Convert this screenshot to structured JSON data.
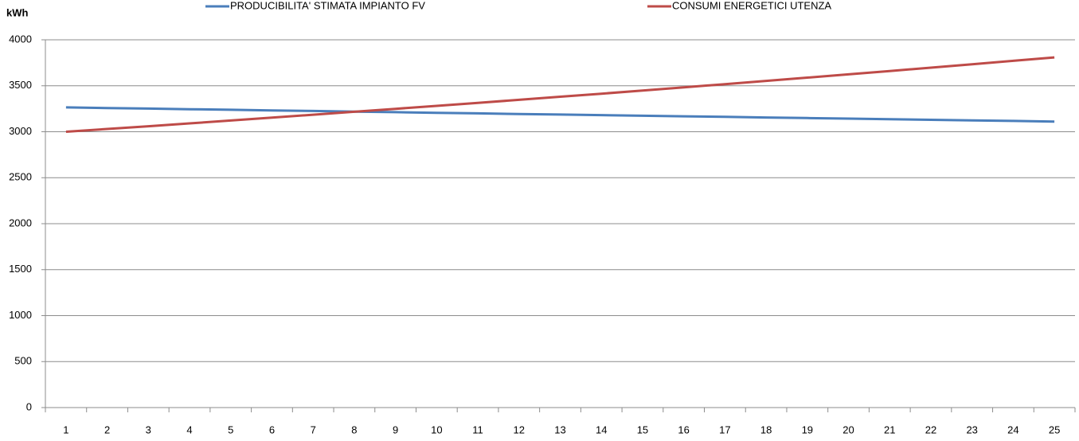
{
  "chart_data": {
    "type": "line",
    "y_label": "kWh",
    "categories": [
      "1",
      "2",
      "3",
      "4",
      "5",
      "6",
      "7",
      "8",
      "9",
      "10",
      "11",
      "12",
      "13",
      "14",
      "15",
      "16",
      "17",
      "18",
      "19",
      "20",
      "21",
      "22",
      "23",
      "24",
      "25"
    ],
    "series": [
      {
        "name": "PRODUCIBILITA' STIMATA IMPIANTO FV",
        "color": "#4a7ebb",
        "values": [
          3265,
          3258,
          3252,
          3245,
          3239,
          3232,
          3226,
          3219,
          3213,
          3206,
          3200,
          3193,
          3187,
          3181,
          3174,
          3168,
          3162,
          3155,
          3149,
          3143,
          3136,
          3130,
          3124,
          3118,
          3111
        ]
      },
      {
        "name": "CONSUMI ENERGETICI UTENZA",
        "color": "#be4b48",
        "values": [
          3000,
          3030,
          3060,
          3091,
          3122,
          3153,
          3185,
          3217,
          3249,
          3281,
          3314,
          3347,
          3381,
          3414,
          3448,
          3483,
          3518,
          3553,
          3589,
          3624,
          3661,
          3697,
          3734,
          3771,
          3809
        ]
      }
    ],
    "ylim": [
      0,
      4000
    ],
    "yticks": [
      0,
      500,
      1000,
      1500,
      2000,
      2500,
      3000,
      3500,
      4000
    ],
    "grid": true,
    "legend": "top"
  }
}
